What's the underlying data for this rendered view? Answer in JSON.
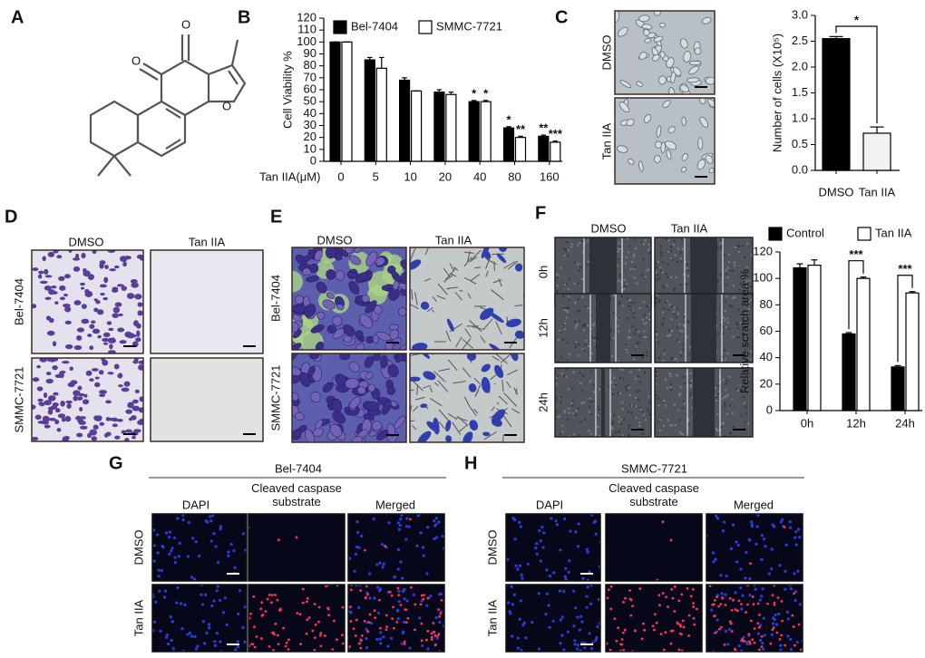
{
  "chart_data": [
    {
      "type": "bar",
      "x_label": "Tan IIA(μM)",
      "y_label": "Cell Viability %",
      "categories": [
        "0",
        "5",
        "10",
        "20",
        "40",
        "80",
        "160"
      ],
      "series": [
        {
          "name": "Bel-7404",
          "color": "#000000",
          "values": [
            100,
            85,
            68,
            58,
            50,
            28,
            21
          ],
          "errors": [
            0,
            2,
            2,
            2,
            1,
            1,
            1
          ],
          "annotations": [
            null,
            null,
            null,
            null,
            "*",
            "*",
            "**"
          ]
        },
        {
          "name": "SMMC-7721",
          "color": "#ffffff",
          "values": [
            100,
            78,
            59,
            56,
            50,
            20,
            16
          ],
          "errors": [
            0,
            9,
            0,
            2,
            1,
            1,
            1
          ],
          "annotations": [
            null,
            null,
            null,
            null,
            "*",
            "**",
            "***"
          ]
        }
      ],
      "ylim": [
        0,
        120
      ],
      "yticks": [
        0,
        10,
        20,
        30,
        40,
        50,
        60,
        70,
        80,
        90,
        100,
        110,
        120
      ]
    },
    {
      "type": "bar",
      "y_label": "Number of cells (X10⁵)",
      "categories": [
        "DMSO",
        "Tan IIA"
      ],
      "values": [
        2.55,
        0.72
      ],
      "errors": [
        0.04,
        0.12
      ],
      "colors": [
        "#000000",
        "#f2f2f2"
      ],
      "ylim": [
        0,
        3
      ],
      "yticks": [
        {
          "value": 0,
          "label": "0.0"
        },
        0.5,
        {
          "value": 1,
          "label": "1.0"
        },
        1.5,
        {
          "value": 2,
          "label": "2.0"
        },
        2.5,
        {
          "value": 3,
          "label": "3.0"
        }
      ],
      "annotations": [
        {
          "text": "*",
          "between": [
            "DMSO",
            "Tan IIA"
          ]
        }
      ]
    },
    {
      "type": "bar",
      "y_label": "Relative scratch area %",
      "categories": [
        "0h",
        "12h",
        "24h"
      ],
      "series": [
        {
          "name": "Control",
          "color": "#000000",
          "values": [
            108,
            58,
            33
          ],
          "errors": [
            3,
            1,
            1
          ]
        },
        {
          "name": "Tan IIA",
          "color": "#ffffff",
          "values": [
            110,
            100,
            89
          ],
          "errors": [
            4,
            1,
            1
          ]
        }
      ],
      "ylim": [
        0,
        120
      ],
      "yticks": [
        0,
        20,
        40,
        60,
        80,
        100,
        120
      ],
      "annotations": [
        {
          "text": "***",
          "category": "12h"
        },
        {
          "text": "***",
          "category": "24h"
        }
      ]
    }
  ],
  "figure": {
    "panel_labels": [
      "A",
      "B",
      "C",
      "D",
      "E",
      "F",
      "G",
      "H"
    ],
    "structure_atoms": [
      "O",
      "O",
      "O"
    ],
    "c_images": {
      "rows": [
        "DMSO",
        "Tan IIA"
      ]
    },
    "d_images": {
      "columns": [
        "DMSO",
        "Tan IIA"
      ],
      "rows": [
        "Bel-7404",
        "SMMC-7721"
      ]
    },
    "e_images": {
      "columns": [
        "DMSO",
        "Tan IIA"
      ],
      "rows": [
        "Bel-7404",
        "SMMC-7721"
      ]
    },
    "f_images": {
      "columns": [
        "DMSO",
        "Tan IIA"
      ],
      "rows": [
        "0h",
        "12h",
        "24h"
      ]
    },
    "g_images": {
      "title": "Bel-7404",
      "columns": [
        "DAPI",
        "Cleaved caspase substrate",
        "Merged"
      ],
      "rows": [
        "DMSO",
        "Tan IIA"
      ]
    },
    "h_images": {
      "title": "SMMC-7721",
      "columns": [
        "DAPI",
        "Cleaved caspase substrate",
        "Merged"
      ],
      "rows": [
        "DMSO",
        "Tan IIA"
      ]
    }
  }
}
